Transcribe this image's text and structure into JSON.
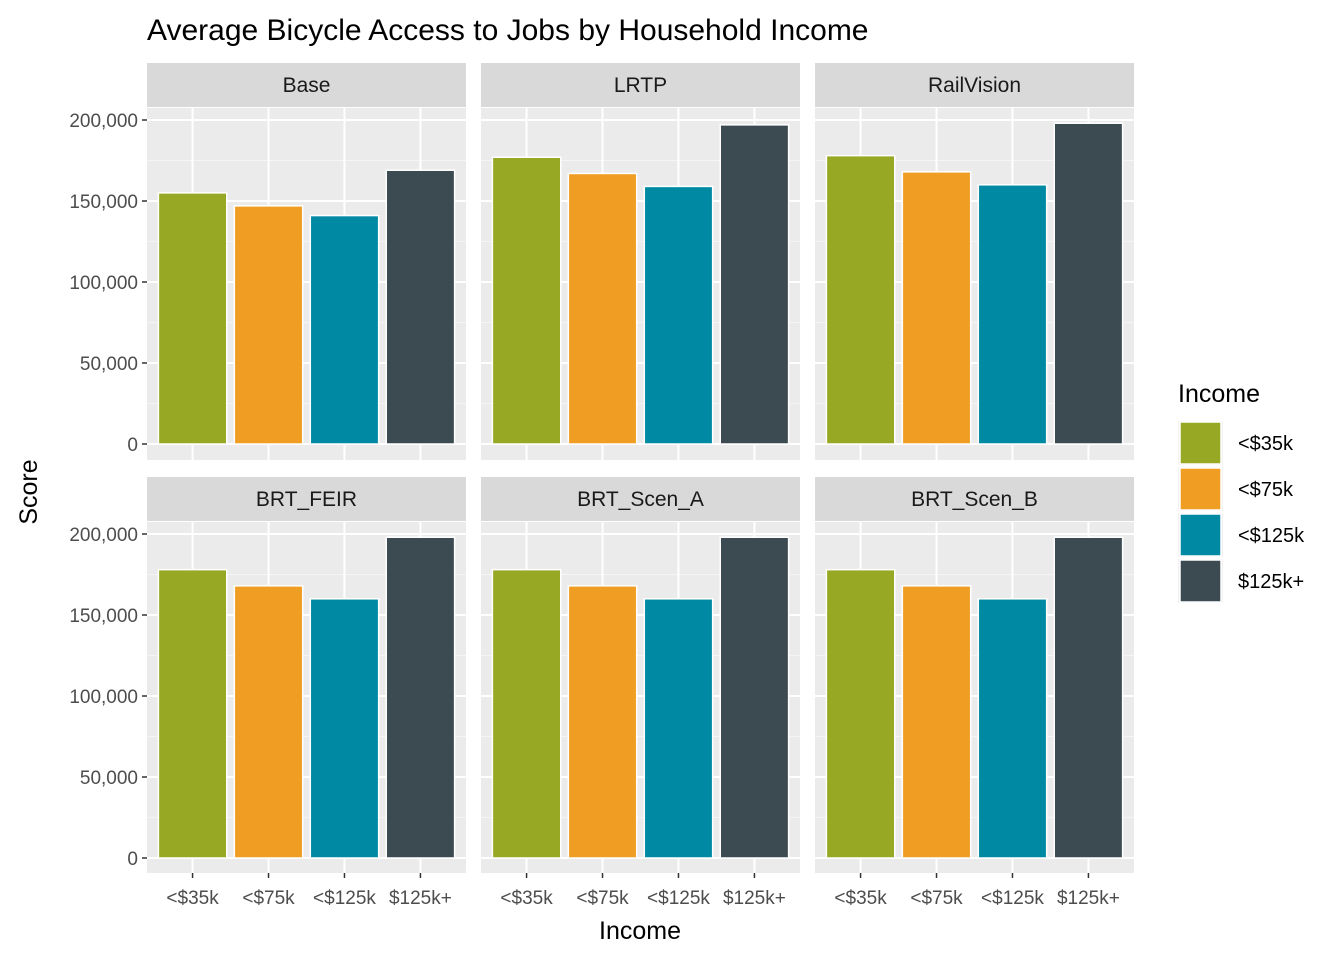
{
  "chart_data": {
    "type": "bar",
    "title": "Average Bicycle Access to Jobs by Household Income",
    "xlabel": "Income",
    "ylabel": "Score",
    "ylim": [
      0,
      210000
    ],
    "yticks": [
      0,
      50000,
      100000,
      150000,
      200000
    ],
    "ytick_labels": [
      "0",
      "50,000",
      "100,000",
      "150,000",
      "200,000"
    ],
    "categories": [
      "<$35k",
      "<$75k",
      "<$125k",
      "$125k+"
    ],
    "colors": [
      "#97A825",
      "#F09D23",
      "#0089A3",
      "#3C4A52"
    ],
    "legend": {
      "title": "Income",
      "position": "right"
    },
    "grid": true,
    "panels": [
      {
        "name": "Base",
        "values": [
          155000,
          147000,
          141000,
          169000
        ]
      },
      {
        "name": "LRTP",
        "values": [
          177000,
          167000,
          159000,
          197000
        ]
      },
      {
        "name": "RailVision",
        "values": [
          178000,
          168000,
          160000,
          198000
        ]
      },
      {
        "name": "BRT_FEIR",
        "values": [
          178000,
          168000,
          160000,
          198000
        ]
      },
      {
        "name": "BRT_Scen_A",
        "values": [
          178000,
          168000,
          160000,
          198000
        ]
      },
      {
        "name": "BRT_Scen_B",
        "values": [
          178000,
          168000,
          160000,
          198000
        ]
      }
    ]
  }
}
